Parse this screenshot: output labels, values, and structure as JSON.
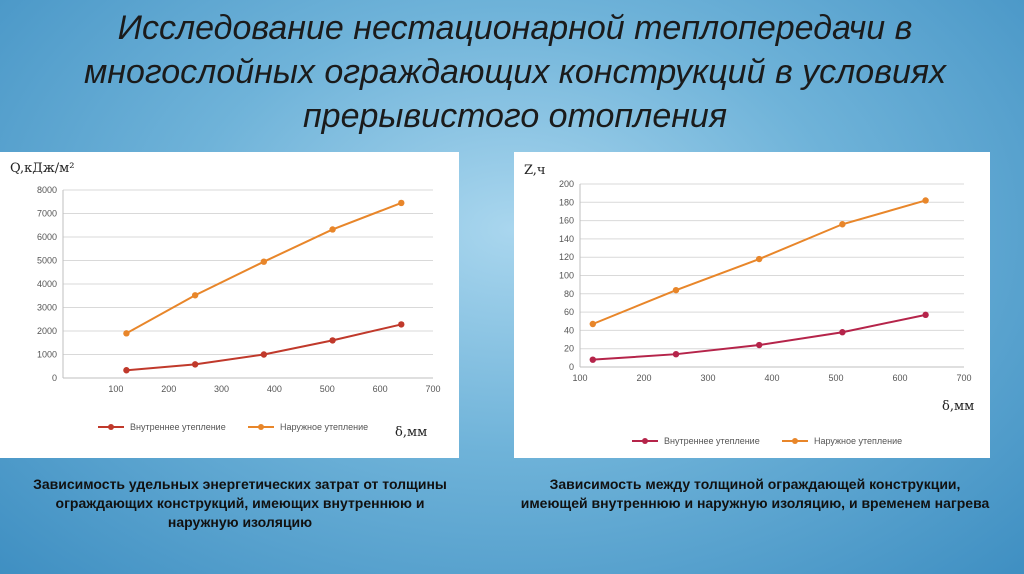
{
  "title": "Исследование нестационарной теплопередачи в многослойных ограждающих конструкций в условиях прерывистого отопления",
  "captions": {
    "left": "Зависимость удельных энергетических затрат от толщины ограждающих конструкций, имеющих внутреннюю и наружную изоляцию",
    "right": "Зависимость между толщиной ограждающей конструкции, имеющей внутреннюю и наружную изоляцию, и временем нагрева"
  },
  "chart_data": [
    {
      "type": "line",
      "ylabel": "Q,кДж/м²",
      "xlabel": "δ,мм",
      "xlim": [
        0,
        700
      ],
      "ylim": [
        0,
        8000
      ],
      "xticks": [
        "100",
        "200",
        "300",
        "400",
        "500",
        "600",
        "700"
      ],
      "yticks": [
        "0",
        "1000",
        "2000",
        "3000",
        "4000",
        "5000",
        "6000",
        "7000",
        "8000"
      ],
      "legend_position": "bottom",
      "x": [
        120,
        250,
        380,
        510,
        640
      ],
      "series": [
        {
          "name": "Внутреннее утепление",
          "color": "#c0392b",
          "values": [
            330,
            580,
            1000,
            1600,
            2280
          ]
        },
        {
          "name": "Наружное утепление",
          "color": "#e8862a",
          "values": [
            1900,
            3520,
            4950,
            6320,
            7450
          ]
        }
      ]
    },
    {
      "type": "line",
      "ylabel": "Z,ч",
      "xlabel": "δ,мм",
      "xlim": [
        100,
        700
      ],
      "ylim": [
        0,
        200
      ],
      "xticks": [
        "100",
        "200",
        "300",
        "400",
        "500",
        "600",
        "700"
      ],
      "yticks": [
        "0",
        "20",
        "40",
        "60",
        "80",
        "100",
        "120",
        "140",
        "160",
        "180",
        "200"
      ],
      "legend_position": "bottom",
      "x": [
        120,
        250,
        380,
        510,
        640
      ],
      "series": [
        {
          "name": "Внутреннее утепление",
          "color": "#b5244a",
          "values": [
            8,
            14,
            24,
            38,
            57
          ]
        },
        {
          "name": "Наружное утепление",
          "color": "#e8862a",
          "values": [
            47,
            84,
            118,
            156,
            182
          ]
        }
      ]
    }
  ]
}
